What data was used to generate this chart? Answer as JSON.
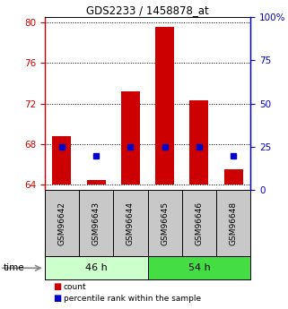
{
  "title": "GDS2233 / 1458878_at",
  "categories": [
    "GSM96642",
    "GSM96643",
    "GSM96644",
    "GSM96645",
    "GSM96646",
    "GSM96648"
  ],
  "count_values": [
    68.8,
    64.5,
    73.2,
    79.5,
    72.3,
    65.5
  ],
  "percentile_values": [
    25,
    20,
    25,
    25,
    25,
    20
  ],
  "groups": [
    {
      "label": "46 h",
      "indices": [
        0,
        1,
        2
      ],
      "color": "#ccffcc"
    },
    {
      "label": "54 h",
      "indices": [
        3,
        4,
        5
      ],
      "color": "#44dd44"
    }
  ],
  "ylim_left": [
    63.5,
    80.5
  ],
  "ylim_right": [
    0,
    100
  ],
  "yticks_left": [
    64,
    68,
    72,
    76,
    80
  ],
  "yticks_right": [
    0,
    25,
    50,
    75,
    100
  ],
  "ytick_labels_right": [
    "0",
    "25",
    "50",
    "75",
    "100%"
  ],
  "bar_color": "#cc0000",
  "percentile_color": "#0000cc",
  "bar_width": 0.55,
  "background_color": "#ffffff",
  "left_axis_color": "#cc0000",
  "right_axis_color": "#0000cc",
  "label_bg_color": "#c8c8c8",
  "time_label": "time",
  "legend_items": [
    {
      "label": "count",
      "color": "#cc0000"
    },
    {
      "label": "percentile rank within the sample",
      "color": "#0000cc"
    }
  ]
}
